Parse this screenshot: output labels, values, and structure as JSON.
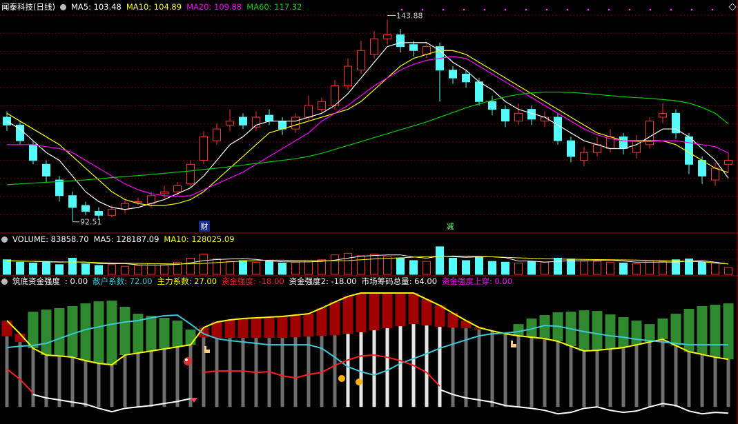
{
  "chart_data": [
    {
      "type": "candlestick",
      "title": "闻泰科技(日线)",
      "up_color": "#ff3232",
      "down_color": "#54fcfc",
      "ylim": [
        90,
        148
      ],
      "open": [
        119,
        117,
        112,
        107,
        103,
        99,
        96.5,
        95,
        94,
        95.5,
        97.5,
        97,
        99.5,
        100,
        102,
        108,
        113,
        117,
        119,
        116.5,
        119.5,
        118,
        116,
        119,
        121,
        122,
        127,
        131,
        135,
        139,
        140,
        137.5,
        135,
        137,
        131,
        130,
        128,
        123,
        121,
        118,
        121,
        118,
        119,
        113,
        108,
        110,
        111,
        114,
        110,
        112,
        119,
        120,
        114,
        108,
        103,
        107
      ],
      "high": [
        120.5,
        118,
        113,
        108,
        104,
        100,
        97.5,
        96,
        96.5,
        98,
        98.5,
        100,
        101.5,
        102.5,
        108,
        115.5,
        117.5,
        121,
        120,
        120.5,
        121,
        119,
        120,
        124.5,
        124,
        128.5,
        134,
        138.5,
        141,
        143.88,
        141.5,
        138.5,
        138,
        138,
        132,
        131,
        129,
        124.5,
        122,
        122.5,
        122,
        120.5,
        120,
        114,
        111.5,
        114,
        116,
        115,
        114.5,
        119,
        122.5,
        121,
        115,
        109,
        107.5,
        110
      ],
      "low": [
        115.5,
        112,
        107,
        102.5,
        97.5,
        92.51,
        94,
        93,
        93.5,
        94.5,
        96.5,
        96,
        98.5,
        99,
        101,
        107,
        112,
        115.5,
        116,
        115.5,
        117,
        114.5,
        115,
        118,
        120,
        121,
        126,
        130,
        134,
        137.5,
        135.5,
        134.5,
        134,
        123,
        127.5,
        126.5,
        122,
        119.5,
        116.5,
        117,
        117,
        116.5,
        112,
        107.5,
        106.5,
        109,
        110,
        109.5,
        108.5,
        111,
        117.5,
        113.5,
        104.5,
        102,
        101.5,
        105
      ],
      "close": [
        117,
        113,
        108,
        104,
        99,
        96,
        95,
        94,
        95.5,
        97,
        97.5,
        99,
        100,
        101.5,
        107,
        114,
        116,
        118,
        117,
        119,
        118,
        116,
        119,
        122,
        123,
        127,
        132,
        136,
        139,
        140,
        137,
        136,
        137,
        131,
        129,
        128,
        123,
        121,
        118,
        120,
        118.5,
        119,
        113,
        109,
        110,
        112,
        114,
        111,
        113,
        118,
        120,
        115,
        107,
        104,
        106,
        108
      ],
      "lines": [
        {
          "name": "MA5: 103.48",
          "color": "#ffffff",
          "values": [
            118,
            116,
            113,
            110,
            108,
            104,
            100,
            97.5,
            96,
            95.5,
            96,
            97,
            98,
            99.5,
            101,
            104,
            108,
            112,
            114,
            117,
            118,
            118,
            118,
            119,
            120,
            122,
            125,
            129,
            133,
            137,
            138,
            138,
            138,
            136,
            133,
            131,
            128,
            126,
            123,
            121,
            120,
            119,
            117,
            115,
            113,
            112,
            111,
            111,
            112,
            114,
            116,
            116,
            114,
            111,
            108,
            103.48
          ]
        },
        {
          "name": "MA10: 104.89",
          "color": "#ffff00",
          "values": [
            120,
            118,
            116,
            114,
            112,
            109,
            106,
            103,
            100,
            98,
            97,
            96.5,
            96.5,
            97,
            98,
            100,
            103,
            106,
            109,
            112,
            115,
            116,
            117,
            118,
            119,
            120,
            121,
            123,
            126,
            129,
            132,
            134,
            135,
            136,
            136,
            135,
            133,
            131,
            129,
            127,
            125,
            123,
            121,
            119,
            117,
            115,
            114,
            113,
            113,
            113,
            113,
            112,
            110,
            108,
            106,
            104.89
          ]
        },
        {
          "name": "MA20: 109.88",
          "color": "#ff00ff",
          "values": [
            112,
            112,
            112,
            111.5,
            111,
            110,
            108,
            106,
            104,
            102,
            100.5,
            99.5,
            99,
            98.8,
            99,
            100.5,
            102,
            103.5,
            105,
            107,
            109,
            111,
            113,
            115,
            118,
            120,
            122,
            124.5,
            127,
            129,
            131,
            132.5,
            133.5,
            134,
            134.5,
            134,
            132,
            130,
            128,
            126,
            124,
            122,
            120,
            118,
            116,
            114.5,
            113.5,
            113,
            112.8,
            112.8,
            113,
            113,
            112.5,
            112,
            111.5,
            109.88
          ]
        },
        {
          "name": "MA60: 117.32",
          "color": "#00d000",
          "values": [
            101.8,
            102,
            102.2,
            102.4,
            102.6,
            102.8,
            103,
            103.3,
            103.6,
            103.9,
            104.1,
            104.4,
            104.7,
            105,
            105.3,
            105.7,
            106,
            106.4,
            106.8,
            107.2,
            107.6,
            108,
            108.4,
            109,
            109.8,
            110.8,
            111.8,
            112.8,
            113.8,
            114.8,
            115.8,
            116.8,
            117.8,
            119,
            120.2,
            121.4,
            122.4,
            123.3,
            124.2,
            124.8,
            125.2,
            125.4,
            125.4,
            125.3,
            125.1,
            124.8,
            124.5,
            124.2,
            124,
            123.8,
            123.5,
            123.2,
            122.6,
            121.5,
            120,
            117.32
          ]
        }
      ],
      "markers": [
        "财",
        "减"
      ]
    },
    {
      "type": "volume",
      "ylim": [
        0,
        390000
      ],
      "series": [
        {
          "name": "VOLUME: 83858.70",
          "color": "#ffffff",
          "values": [
            180000,
            150000,
            140000,
            160000,
            120000,
            200000,
            130000,
            110000,
            120000,
            100000,
            110000,
            130000,
            120000,
            150000,
            200000,
            250000,
            190000,
            160000,
            170000,
            150000,
            160000,
            140000,
            150000,
            170000,
            180000,
            240000,
            260000,
            230000,
            250000,
            220000,
            200000,
            170000,
            160000,
            340000,
            200000,
            170000,
            210000,
            160000,
            150000,
            140000,
            160000,
            150000,
            200000,
            190000,
            170000,
            160000,
            150000,
            140000,
            130000,
            170000,
            160000,
            180000,
            190000,
            150000,
            140000,
            83858.7
          ]
        }
      ],
      "lines": [
        {
          "name": "MA5: 128187.09",
          "color": "#ffffff",
          "values": [
            170000,
            165000,
            160000,
            155000,
            150000,
            154000,
            150000,
            132000,
            132000,
            132000,
            118000,
            114000,
            116000,
            122000,
            142000,
            170000,
            182000,
            190000,
            194000,
            184000,
            166000,
            156000,
            154000,
            154000,
            160000,
            176000,
            200000,
            224000,
            232000,
            240000,
            240000,
            214000,
            200000,
            224000,
            218000,
            210000,
            216000,
            216000,
            206000,
            164000,
            164000,
            152000,
            160000,
            168000,
            164000,
            174000,
            176000,
            164000,
            150000,
            150000,
            152000,
            152000,
            164000,
            170000,
            150000,
            128187.09
          ]
        },
        {
          "name": "MA10: 128025.09",
          "color": "#ffff00",
          "values": [
            165000,
            163000,
            161000,
            158000,
            155000,
            152000,
            150000,
            145000,
            140000,
            138000,
            135000,
            132000,
            130000,
            128000,
            130000,
            135000,
            145000,
            155000,
            163000,
            170000,
            175000,
            175000,
            172000,
            170000,
            168000,
            168000,
            170000,
            180000,
            190000,
            198000,
            204000,
            212000,
            218000,
            222000,
            226000,
            225000,
            222000,
            216000,
            210000,
            204000,
            198000,
            194000,
            190000,
            186000,
            184000,
            182000,
            180000,
            178000,
            176000,
            172000,
            168000,
            164000,
            160000,
            156000,
            140000,
            128025.09
          ]
        }
      ]
    },
    {
      "type": "indicator",
      "title": "筑底资金强度",
      "ylim": [
        -15,
        100
      ],
      "bars": {
        "name": ": 0.00",
        "color": "#ffffff",
        "values": [
          62,
          57,
          51.5,
          45.5,
          44.8,
          43.6,
          40.6,
          38.2,
          37,
          45.5,
          47.3,
          49.1,
          50.9,
          52.7,
          54.5,
          61.2,
          60.6,
          60.6,
          60.6,
          60.6,
          60.6,
          60.6,
          61.2,
          61.8,
          62.4,
          63,
          64.2,
          65.5,
          67.3,
          69.1,
          70.9,
          72.7,
          71.5,
          70.3,
          69.7,
          69.1,
          67.9,
          66.7,
          64.2,
          62.4,
          61.2,
          60,
          57.6,
          53.3,
          49.1,
          49.7,
          50.9,
          52.1,
          54.5,
          57,
          59.4,
          53.9,
          48.5,
          46.1,
          43.6,
          41.8
        ],
        "colors": [
          "#6e6e6e",
          "#6e6e6e",
          "#6e6e6e",
          "#6e6e6e",
          "#6e6e6e",
          "#6e6e6e",
          "#6e6e6e",
          "#6e6e6e",
          "#6e6e6e",
          "#6e6e6e",
          "#6e6e6e",
          "#6e6e6e",
          "#6e6e6e",
          "#6e6e6e",
          "#6e6e6e",
          "#6e6e6e",
          "#6e6e6e",
          "#6e6e6e",
          "#6e6e6e",
          "#6e6e6e",
          "#6e6e6e",
          "#6e6e6e",
          "#6e6e6e",
          "#6e6e6e",
          "#6e6e6e",
          "#6e6e6e",
          "#e6e6e6",
          "#e6e6e6",
          "#e6e6e6",
          "#e6e6e6",
          "#e6e6e6",
          "#e6e6e6",
          "#e6e6e6",
          "#e6e6e6",
          "#6e6e6e",
          "#6e6e6e",
          "#6e6e6e",
          "#6e6e6e",
          "#6e6e6e",
          "#6e6e6e",
          "#6e6e6e",
          "#6e6e6e",
          "#6e6e6e",
          "#6e6e6e",
          "#6e6e6e",
          "#6e6e6e",
          "#6e6e6e",
          "#6e6e6e",
          "#6e6e6e",
          "#6e6e6e",
          "#6e6e6e",
          "#6e6e6e",
          "#6e6e6e",
          "#6e6e6e",
          "#6e6e6e",
          "#6e6e6e"
        ]
      },
      "band": {
        "above_color": "#a00000",
        "below_color": "#2f8a2f",
        "upper": {
          "name": "主力系数: 27.00",
          "color": "#ffff00",
          "values": [
            75.8,
            64.2,
            51.5,
            45.5,
            44.8,
            43.6,
            40.6,
            38.2,
            37,
            45.5,
            47.3,
            49.1,
            50.9,
            52.7,
            54.5,
            69.7,
            74.5,
            76.4,
            77.6,
            78.2,
            78.8,
            79.4,
            80.6,
            81.8,
            86.7,
            92.1,
            97,
            100,
            100,
            100,
            100,
            100,
            94.5,
            89.1,
            82.4,
            75.8,
            69.7,
            66.7,
            64.2,
            62.4,
            61.2,
            60,
            57.6,
            53.3,
            49.1,
            49.7,
            50.9,
            52.1,
            54.5,
            57,
            59.4,
            53.9,
            48.5,
            46.1,
            43.6,
            41.8
          ]
        },
        "lower": {
          "name": "市场筹码总量: 64.00",
          "color": "#ffffff",
          "values": [
            62,
            57,
            83.6,
            85.5,
            86.7,
            88.5,
            90.9,
            92.7,
            93.3,
            87.9,
            81.8,
            80,
            78.2,
            75.8,
            67.9,
            61.2,
            60.6,
            60.6,
            60.6,
            60.6,
            60.6,
            60.6,
            61.2,
            61.8,
            62.4,
            63,
            64.2,
            65.5,
            67.3,
            69.1,
            70.9,
            72.7,
            71.5,
            70.3,
            69.7,
            69.1,
            67.9,
            66.7,
            64.2,
            72.7,
            77.6,
            80.6,
            83,
            83.6,
            84.8,
            84.2,
            81.2,
            78.8,
            75.8,
            72.7,
            77.6,
            81.8,
            86.1,
            88.5,
            89.7,
            90.9
          ]
        }
      },
      "lines": [
        {
          "name": "散户系数: 72.00",
          "color": "#3cc8d8",
          "values": [
            52.1,
            53.3,
            53.9,
            55.8,
            60,
            64.2,
            67.9,
            70.3,
            72.7,
            74.5,
            75.8,
            78.2,
            80,
            80.6,
            72.7,
            64.2,
            60,
            58.2,
            57,
            55.8,
            54.5,
            54.5,
            54.5,
            54.5,
            51.5,
            43.6,
            35.2,
            30.9,
            27.9,
            32.1,
            38.2,
            42.4,
            46.7,
            51.5,
            55.2,
            58.8,
            62.4,
            64.2,
            64.8,
            66.1,
            68.5,
            71.5,
            70.9,
            68.5,
            66.1,
            64.2,
            62.4,
            61.2,
            59.4,
            58.2,
            57,
            55.8,
            54.5,
            54.5,
            54.5,
            54.5
          ]
        },
        {
          "name": "资金强度: -18.00",
          "color": "#ff2020",
          "values": [
            33.3,
            24.2,
            12.1,
            null,
            null,
            null,
            null,
            null,
            null,
            null,
            null,
            null,
            null,
            null,
            null,
            30.3,
            31.5,
            31.5,
            31.5,
            30.3,
            30.9,
            27.3,
            25.5,
            28.5,
            30.3,
            36.4,
            41.2,
            44.8,
            45.5,
            43.6,
            40.6,
            36.4,
            30.3,
            18.2,
            null,
            null,
            null,
            null,
            null,
            null,
            null,
            null,
            null,
            null,
            null,
            null,
            null,
            null,
            null,
            null,
            null,
            null,
            null,
            null,
            null,
            null
          ]
        },
        {
          "name": "资金强度2: -18.00",
          "color": "#ffffff",
          "values": [
            null,
            null,
            10.9,
            7.9,
            6.1,
            4.2,
            2.4,
            -1.2,
            -4.2,
            -1.2,
            0,
            1.2,
            3,
            4.8,
            7.3,
            null,
            null,
            null,
            null,
            null,
            null,
            null,
            null,
            null,
            null,
            null,
            null,
            null,
            null,
            null,
            null,
            null,
            null,
            15.2,
            10.9,
            7.9,
            6.1,
            4.2,
            1.2,
            0,
            -1.2,
            -3,
            -6.1,
            -4.8,
            -1.2,
            0,
            -3,
            -4.8,
            -3.6,
            0,
            3,
            1.2,
            -3.6,
            -6.1,
            -4.8,
            -5.5
          ]
        }
      ],
      "labels": [
        {
          "text": "资金强度上穿: 0.00",
          "color": "#ff00ff"
        }
      ]
    }
  ]
}
